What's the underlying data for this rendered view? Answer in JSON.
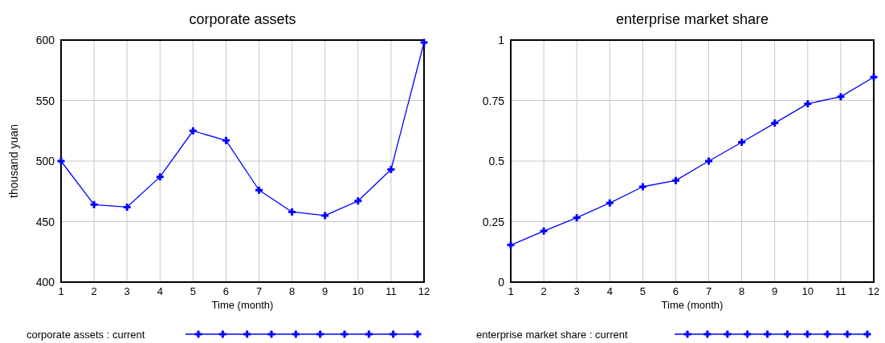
{
  "chart_data": [
    {
      "type": "line",
      "title": "corporate assets",
      "xlabel": "Time (month)",
      "ylabel": "thousand yuan",
      "x": [
        1,
        2,
        3,
        4,
        5,
        6,
        7,
        8,
        9,
        10,
        11,
        12
      ],
      "xlim": [
        1,
        12
      ],
      "xticks": [
        1,
        2,
        3,
        4,
        5,
        6,
        7,
        8,
        9,
        10,
        11,
        12
      ],
      "ylim": [
        400,
        600
      ],
      "yticks": [
        400,
        450,
        500,
        550,
        600
      ],
      "grid": true,
      "legend": "bottom",
      "marker": "cross",
      "series": [
        {
          "name": "corporate assets : current",
          "color": "#0000ff",
          "values": [
            500,
            464,
            462,
            487,
            525,
            517,
            476,
            458,
            455,
            467,
            493,
            598
          ]
        }
      ]
    },
    {
      "type": "line",
      "title": "enterprise market share",
      "xlabel": "Time (month)",
      "x": [
        1,
        2,
        3,
        4,
        5,
        6,
        7,
        8,
        9,
        10,
        11,
        12
      ],
      "xlim": [
        1,
        12
      ],
      "xticks": [
        1,
        2,
        3,
        4,
        5,
        6,
        7,
        8,
        9,
        10,
        11,
        12
      ],
      "ylim": [
        0,
        1
      ],
      "yticks": [
        0,
        0.25,
        0.5,
        0.75,
        1
      ],
      "grid": true,
      "legend": "bottom",
      "marker": "cross",
      "series": [
        {
          "name": "enterprise market share : current",
          "color": "#0000ff",
          "values": [
            0.153,
            0.211,
            0.266,
            0.327,
            0.394,
            0.42,
            0.5,
            0.578,
            0.657,
            0.737,
            0.766,
            0.847
          ]
        }
      ]
    }
  ]
}
